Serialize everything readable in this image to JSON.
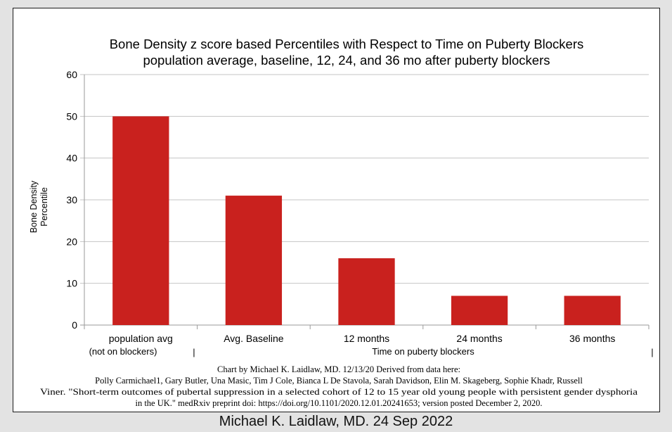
{
  "chart_data": {
    "type": "bar",
    "title": "Bone Density z score based Percentiles with Respect to Time on Puberty Blockers",
    "subtitle": "population average, baseline, 12, 24, and 36 mo after puberty blockers",
    "categories": [
      "population avg",
      "Avg. Baseline",
      "12 months",
      "24 months",
      "36 months"
    ],
    "values": [
      50,
      31,
      16,
      7,
      7
    ],
    "ylabel_line1": "Bone Density",
    "ylabel_line2": "Percentile",
    "ylim": [
      0,
      60
    ],
    "yticks": [
      0,
      10,
      20,
      30,
      40,
      50,
      60
    ],
    "grid": true,
    "bar_color": "#c9211e",
    "group_label_left": "(not on blockers)",
    "group_label_right": "Time on puberty blockers",
    "group_separator": "|"
  },
  "credit": {
    "line1": "Chart by Michael K. Laidlaw, MD. 12/13/20 Derived from data here:",
    "line2": "Polly Carmichael1, Gary Butler, Una Masic, Tim J Cole, Bianca L De Stavola, Sarah Davidson, Elin M. Skageberg, Sophie Khadr, Russell",
    "line3": "Viner.  \"Short-term outcomes of pubertal suppression in a selected cohort of 12 to 15 year old young people with persistent gender dysphoria",
    "line4": "in the UK.\" medRxiv preprint doi: https://doi.org/10.1101/2020.12.01.20241653; version posted December 2, 2020."
  },
  "footer": "Michael K. Laidlaw, MD. 24 Sep 2022"
}
